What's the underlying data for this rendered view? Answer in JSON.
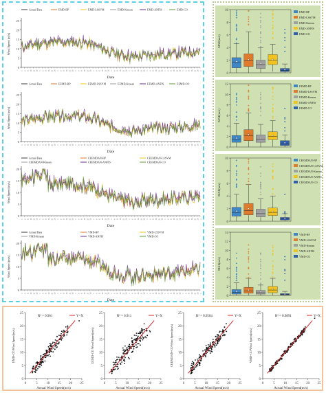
{
  "chart_data": [
    {
      "type": "line",
      "panel": "time-series-1",
      "xlabel": "Date",
      "ylabel": "Wind Speed (m/s)",
      "ylim": [
        0,
        25
      ],
      "yticks": [
        0,
        5,
        10,
        15,
        20,
        25
      ],
      "series": [
        {
          "name": "Actual Data",
          "color": "#3a3a3a"
        },
        {
          "name": "EMD-BP",
          "color": "#e07a2c"
        },
        {
          "name": "EMD-LSSVM",
          "color": "#f2c31f"
        },
        {
          "name": "EMD-Kmean",
          "color": "#9b9b9b"
        },
        {
          "name": "EMD-ANFIS",
          "color": "#6a2c99"
        },
        {
          "name": "EMD-CO",
          "color": "#5aa02c"
        }
      ]
    },
    {
      "type": "line",
      "panel": "time-series-2",
      "xlabel": "Date",
      "ylabel": "Wind Speed (m/s)",
      "ylim": [
        0,
        25
      ],
      "yticks": [
        0,
        5,
        10,
        15,
        20,
        25
      ],
      "series": [
        {
          "name": "Actual Data",
          "color": "#3a3a3a"
        },
        {
          "name": "EEMD-BP",
          "color": "#e07a2c"
        },
        {
          "name": "EEMD-LSSVM",
          "color": "#f2c31f"
        },
        {
          "name": "EEMD-Kmean",
          "color": "#9b9b9b"
        },
        {
          "name": "EEMD-ANFIS",
          "color": "#6a2c99"
        },
        {
          "name": "EEMD-CO",
          "color": "#5aa02c"
        }
      ]
    },
    {
      "type": "line",
      "panel": "time-series-3",
      "xlabel": "Date",
      "ylabel": "Wind Speed (m/s)",
      "ylim": [
        0,
        20
      ],
      "yticks": [
        0,
        5,
        10,
        15,
        20
      ],
      "series": [
        {
          "name": "Actual Data",
          "color": "#3a3a3a"
        },
        {
          "name": "CEEMDAN-BP",
          "color": "#e07a2c"
        },
        {
          "name": "CEEMDAN-LSSVM",
          "color": "#f2c31f"
        },
        {
          "name": "CEEMDAN-Kmean",
          "color": "#9b9b9b"
        },
        {
          "name": "CEEMDAN-ANFIS",
          "color": "#6a2c99"
        },
        {
          "name": "CEEMDAN-CO",
          "color": "#5aa02c"
        }
      ]
    },
    {
      "type": "line",
      "panel": "time-series-4",
      "xlabel": "Date",
      "ylabel": "Wind Speed (m/s)",
      "ylim": [
        0,
        20
      ],
      "yticks": [
        0,
        5,
        10,
        15,
        20
      ],
      "series": [
        {
          "name": "Actual Data",
          "color": "#3a3a3a"
        },
        {
          "name": "VMD-BP",
          "color": "#e07a2c"
        },
        {
          "name": "VMD-LSSVM",
          "color": "#f2c31f"
        },
        {
          "name": "VMD-Kmean",
          "color": "#9b9b9b"
        },
        {
          "name": "VMD-ANFIS",
          "color": "#6a2c99"
        },
        {
          "name": "VMD-CO",
          "color": "#5aa02c"
        }
      ]
    },
    {
      "type": "box",
      "panel": "boxplot-1",
      "ylabel": "MAE(m/s)",
      "ylim": [
        0,
        10
      ],
      "yticks": [
        0,
        2,
        4,
        6,
        8,
        10
      ],
      "series": [
        {
          "name": "EMD-BP",
          "color": "#3f86c6",
          "q1": 0.8,
          "median": 1.6,
          "q3": 2.4,
          "whisker_low": 0,
          "whisker_high": 4.6,
          "mean": 1.8
        },
        {
          "name": "EMD-LSSVM",
          "color": "#e07a2c",
          "q1": 1.0,
          "median": 1.9,
          "q3": 3.0,
          "whisker_low": 0,
          "whisker_high": 6.5,
          "mean": 2.1
        },
        {
          "name": "EMD-Kmean",
          "color": "#a0a0a0",
          "q1": 0.7,
          "median": 1.3,
          "q3": 2.0,
          "whisker_low": 0,
          "whisker_high": 4.0,
          "mean": 1.5
        },
        {
          "name": "EMD-ANFIS",
          "color": "#f2c31f",
          "q1": 1.3,
          "median": 2.0,
          "q3": 2.9,
          "whisker_low": 0.2,
          "whisker_high": 4.5,
          "mean": 2.1
        },
        {
          "name": "EMD-CO",
          "color": "#2f5fae",
          "q1": 0.2,
          "median": 0.4,
          "q3": 0.7,
          "whisker_low": 0,
          "whisker_high": 1.4,
          "mean": 0.5
        }
      ]
    },
    {
      "type": "box",
      "panel": "boxplot-2",
      "ylabel": "MAE(m/s)",
      "ylim": [
        0,
        12
      ],
      "yticks": [
        0,
        2,
        4,
        6,
        8,
        10,
        12
      ],
      "series": [
        {
          "name": "EEMD-BP",
          "color": "#3f86c6",
          "q1": 0.9,
          "median": 1.5,
          "q3": 2.2,
          "whisker_low": 0,
          "whisker_high": 4.5,
          "mean": 1.7
        },
        {
          "name": "EEMD-LSSVM",
          "color": "#e07a2c",
          "q1": 1.2,
          "median": 2.2,
          "q3": 3.3,
          "whisker_low": 0,
          "whisker_high": 6.5,
          "mean": 2.4
        },
        {
          "name": "EEMD-Kmean",
          "color": "#a0a0a0",
          "q1": 0.9,
          "median": 1.5,
          "q3": 2.3,
          "whisker_low": 0,
          "whisker_high": 4.3,
          "mean": 1.7
        },
        {
          "name": "EEMD-ANFIS",
          "color": "#f2c31f",
          "q1": 1.4,
          "median": 2.0,
          "q3": 2.9,
          "whisker_low": 0.1,
          "whisker_high": 5.0,
          "mean": 2.2
        },
        {
          "name": "EEMD-CO",
          "color": "#2f5fae",
          "q1": 0.3,
          "median": 0.6,
          "q3": 1.2,
          "whisker_low": 0,
          "whisker_high": 2.3,
          "mean": 0.8
        }
      ]
    },
    {
      "type": "box",
      "panel": "boxplot-3",
      "ylabel": "MAE(m/s)",
      "ylim": [
        0,
        10
      ],
      "yticks": [
        0,
        2,
        4,
        6,
        8,
        10
      ],
      "series": [
        {
          "name": "CEEMDAN-BP",
          "color": "#3f86c6",
          "q1": 0.8,
          "median": 1.4,
          "q3": 2.2,
          "whisker_low": 0,
          "whisker_high": 4.3,
          "mean": 1.6
        },
        {
          "name": "CEEMDAN-LSSVM",
          "color": "#e07a2c",
          "q1": 1.0,
          "median": 1.7,
          "q3": 2.8,
          "whisker_low": 0,
          "whisker_high": 5.8,
          "mean": 2.0
        },
        {
          "name": "CEEMDAN-Kmean",
          "color": "#a0a0a0",
          "q1": 0.7,
          "median": 1.2,
          "q3": 1.9,
          "whisker_low": 0,
          "whisker_high": 3.6,
          "mean": 1.4
        },
        {
          "name": "CEEMDAN-ANFIS",
          "color": "#f2c31f",
          "q1": 0.9,
          "median": 1.4,
          "q3": 2.1,
          "whisker_low": 0,
          "whisker_high": 4.0,
          "mean": 1.5
        },
        {
          "name": "CEEMDAN-CO",
          "color": "#2f5fae",
          "q1": 0.2,
          "median": 0.4,
          "q3": 0.6,
          "whisker_low": 0,
          "whisker_high": 1.2,
          "mean": 0.4
        }
      ]
    },
    {
      "type": "box",
      "panel": "boxplot-4",
      "ylabel": "MAE(m/s)",
      "ylim": [
        0,
        14
      ],
      "yticks": [
        0,
        2,
        4,
        6,
        8,
        10,
        12,
        14
      ],
      "series": [
        {
          "name": "VMD-BP",
          "color": "#3f86c6",
          "q1": 0.3,
          "median": 0.7,
          "q3": 1.3,
          "whisker_low": 0,
          "whisker_high": 2.8,
          "mean": 0.9
        },
        {
          "name": "VMD-LSSVM",
          "color": "#e07a2c",
          "q1": 0.5,
          "median": 1.0,
          "q3": 1.8,
          "whisker_low": 0,
          "whisker_high": 3.8,
          "mean": 1.2
        },
        {
          "name": "VMD-Kmean",
          "color": "#a0a0a0",
          "q1": 0.3,
          "median": 0.6,
          "q3": 1.1,
          "whisker_low": 0,
          "whisker_high": 2.3,
          "mean": 0.8
        },
        {
          "name": "VMD-ANFIS",
          "color": "#f2c31f",
          "q1": 0.6,
          "median": 1.2,
          "q3": 2.0,
          "whisker_low": 0,
          "whisker_high": 3.8,
          "mean": 1.4
        },
        {
          "name": "VMD-CO",
          "color": "#2f5fae",
          "q1": 0.1,
          "median": 0.2,
          "q3": 0.4,
          "whisker_low": 0,
          "whisker_high": 0.9,
          "mean": 0.3
        }
      ]
    },
    {
      "type": "scatter",
      "panel": "scatter-1",
      "r2_label": "R² = 0.961",
      "legend": "Y=X",
      "xlabel": "Actual Wind Speed(m/s)",
      "ylabel": "EMD-CO Wind Speed(m/s)",
      "xlim": [
        0,
        25
      ],
      "ylim": [
        0,
        25
      ],
      "ticks": [
        0,
        5,
        10,
        15,
        20,
        25
      ],
      "spread": 1.6
    },
    {
      "type": "scatter",
      "panel": "scatter-2",
      "r2_label": "R² = 0.911",
      "legend": "Y=X",
      "xlabel": "Actual Wind Speed(m/s)",
      "ylabel": "EEMD-CO Wind Speed(m/s)",
      "xlim": [
        0,
        25
      ],
      "ylim": [
        0,
        25
      ],
      "ticks": [
        0,
        5,
        10,
        15,
        20,
        25
      ],
      "spread": 2.3
    },
    {
      "type": "scatter",
      "panel": "scatter-3",
      "r2_label": "R² = 0.9504",
      "legend": "Y=X",
      "xlabel": "Actual Wind Speed(m/s)",
      "ylabel": "CEEMDAN-CO Wind Speed(m/s)",
      "xlim": [
        0,
        25
      ],
      "ylim": [
        0,
        25
      ],
      "ticks": [
        0,
        5,
        10,
        15,
        20,
        25
      ],
      "spread": 1.8
    },
    {
      "type": "scatter",
      "panel": "scatter-4",
      "r2_label": "R² = 0.9891",
      "legend": "Y=X",
      "xlabel": "Actual Wind Speed(m/s)",
      "ylabel": "VMD-CO Wind Speed(m/s)",
      "xlim": [
        0,
        25
      ],
      "ylim": [
        0,
        25
      ],
      "ticks": [
        0,
        5,
        10,
        15,
        20,
        25
      ],
      "spread": 0.7
    }
  ],
  "colors": {
    "left_border": "#59d0e6",
    "right_border": "#b9c890",
    "bottom_border": "#f4c29a",
    "box_panel_bg": "#cfe0b3",
    "fit_line": "#d62728"
  }
}
